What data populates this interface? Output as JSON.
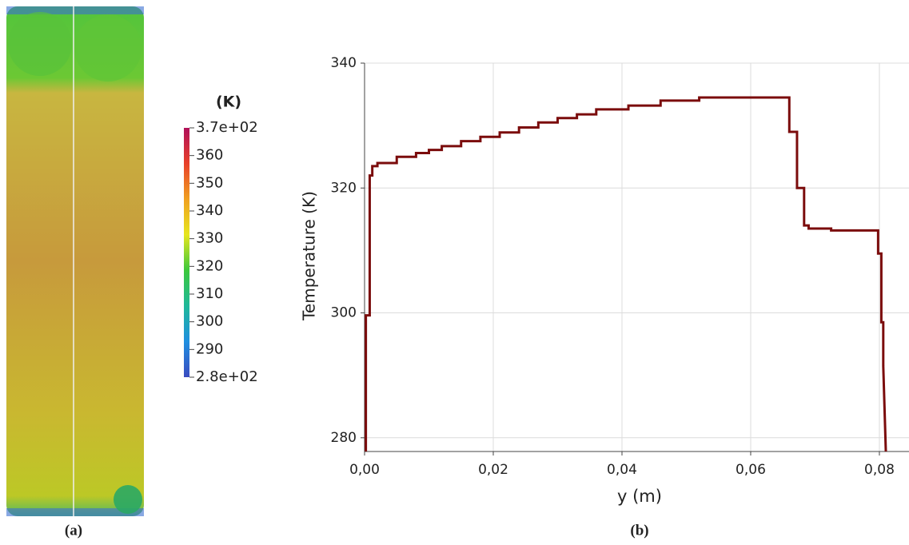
{
  "chart_data": [
    {
      "type": "colorbar",
      "title": "(K)",
      "caption": "(a)",
      "lim": [
        280,
        370
      ],
      "ticks": [
        {
          "value": 370,
          "label": "3.7e+02"
        },
        360,
        350,
        340,
        330,
        320,
        310,
        300,
        290,
        {
          "value": 280,
          "label": "2.8e+02"
        }
      ],
      "colormap": [
        "#3a4cc0",
        "#1f8fe0",
        "#1fb89a",
        "#3cc83c",
        "#e6e61e",
        "#f0a020",
        "#e8402a",
        "#b0105a"
      ]
    },
    {
      "type": "line",
      "caption": "(b)",
      "xlabel": "y   (m)",
      "ylabel": "Temperature   (K)",
      "xlim": [
        0,
        0.0846
      ],
      "ylim": [
        277.8,
        340
      ],
      "xticks": [
        {
          "value": 0,
          "label": "0,00"
        },
        {
          "value": 0.02,
          "label": "0,02"
        },
        {
          "value": 0.04,
          "label": "0,04"
        },
        {
          "value": 0.06,
          "label": "0,06"
        },
        {
          "value": 0.08,
          "label": "0,08"
        }
      ],
      "yticks": [
        280,
        300,
        320,
        340
      ],
      "grid": true,
      "series": [
        {
          "name": "Temperature",
          "color": "#7b0c0c",
          "x": [
            0.0002,
            0.0002,
            0.0008,
            0.0008,
            0.0012,
            0.0012,
            0.002,
            0.002,
            0.005,
            0.005,
            0.008,
            0.008,
            0.01,
            0.01,
            0.012,
            0.012,
            0.015,
            0.015,
            0.018,
            0.018,
            0.021,
            0.021,
            0.024,
            0.024,
            0.027,
            0.027,
            0.03,
            0.03,
            0.033,
            0.033,
            0.036,
            0.036,
            0.041,
            0.041,
            0.046,
            0.046,
            0.052,
            0.052,
            0.066,
            0.066,
            0.0672,
            0.0672,
            0.0683,
            0.0683,
            0.069,
            0.069,
            0.0725,
            0.0725,
            0.0798,
            0.0798,
            0.0803,
            0.0803,
            0.0806,
            0.0806,
            0.081
          ],
          "values": [
            277.8,
            299.6,
            299.6,
            322,
            322,
            323.5,
            323.5,
            324,
            324,
            325,
            325,
            325.6,
            325.6,
            326.1,
            326.1,
            326.7,
            326.7,
            327.5,
            327.5,
            328.2,
            328.2,
            328.9,
            328.9,
            329.7,
            329.7,
            330.5,
            330.5,
            331.2,
            331.2,
            331.8,
            331.8,
            332.6,
            332.6,
            333.2,
            333.2,
            334,
            334,
            334.5,
            334.5,
            329,
            329,
            320,
            320,
            314,
            314,
            313.5,
            313.5,
            313.2,
            313.2,
            309.5,
            309.5,
            298.5,
            298.5,
            291.5,
            277.8
          ]
        }
      ]
    }
  ]
}
